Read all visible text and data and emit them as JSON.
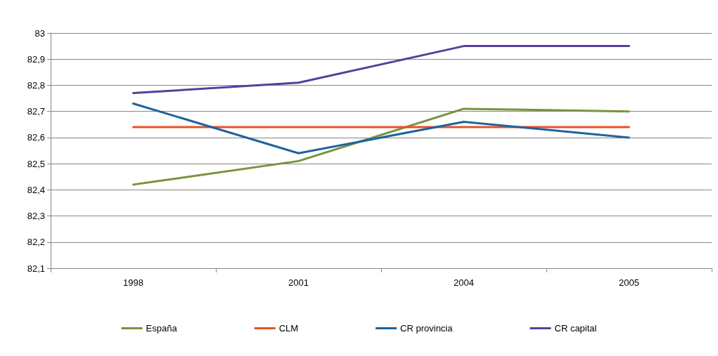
{
  "chart_data": {
    "type": "line",
    "categories": [
      "1998",
      "2001",
      "2004",
      "2005"
    ],
    "series": [
      {
        "name": "España",
        "color": "#77933c",
        "values": [
          82.42,
          82.51,
          82.71,
          82.7
        ]
      },
      {
        "name": "CLM",
        "color": "#e8502a",
        "values": [
          82.64,
          82.64,
          82.64,
          82.64
        ]
      },
      {
        "name": "CR provincia",
        "color": "#1f639e",
        "values": [
          82.73,
          82.54,
          82.66,
          82.6
        ]
      },
      {
        "name": "CR capital",
        "color": "#5a3d9e",
        "values": [
          82.77,
          82.81,
          82.95,
          82.95
        ]
      }
    ],
    "ylim": [
      82.1,
      83
    ],
    "yticks": [
      {
        "value": 82.1,
        "label": "82,1"
      },
      {
        "value": 82.2,
        "label": "82,2"
      },
      {
        "value": 82.3,
        "label": "82,3"
      },
      {
        "value": 82.4,
        "label": "82,4"
      },
      {
        "value": 82.5,
        "label": "82,5"
      },
      {
        "value": 82.6,
        "label": "82,6"
      },
      {
        "value": 82.7,
        "label": "82,7"
      },
      {
        "value": 82.8,
        "label": "82,8"
      },
      {
        "value": 82.9,
        "label": "82,9"
      },
      83
    ],
    "grid": "y",
    "legend": "bottom",
    "marker": "none",
    "line_style": "solid"
  }
}
